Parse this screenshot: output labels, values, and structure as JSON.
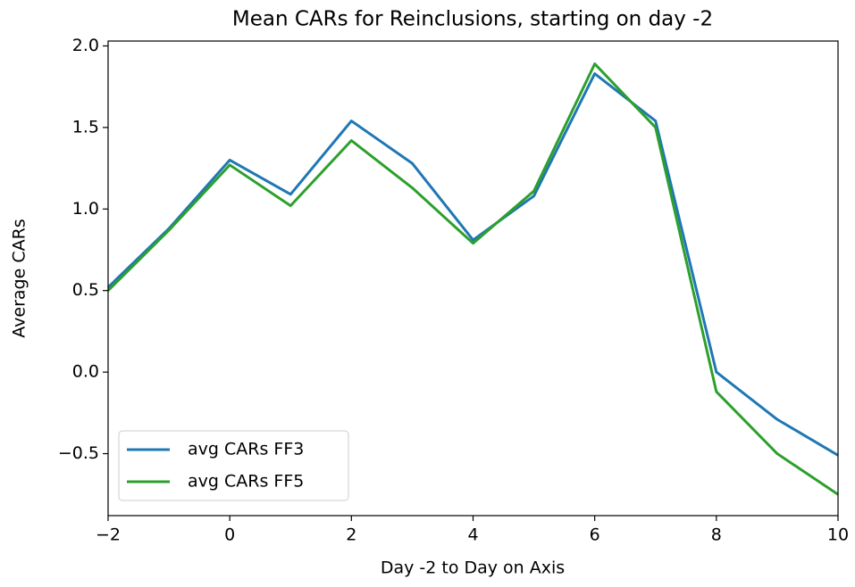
{
  "chart_data": {
    "type": "line",
    "title": "Mean CARs for  Reinclusions, starting on day -2",
    "x_label": "Day -2 to Day on Axis",
    "y_label": "Average CARs",
    "x": [
      -2,
      -1,
      0,
      1,
      2,
      3,
      4,
      5,
      6,
      7,
      8,
      9,
      10
    ],
    "series": [
      {
        "name": "avg CARs FF3",
        "color": "#1f77b4",
        "values": [
          0.52,
          0.88,
          1.3,
          1.09,
          1.54,
          1.28,
          0.81,
          1.08,
          1.83,
          1.54,
          0.0,
          -0.29,
          -0.51
        ]
      },
      {
        "name": "avg CARs FF5",
        "color": "#2ca02c",
        "values": [
          0.5,
          0.87,
          1.27,
          1.02,
          1.42,
          1.13,
          0.79,
          1.11,
          1.89,
          1.5,
          -0.12,
          -0.5,
          -0.75
        ]
      }
    ],
    "xlim": [
      -2,
      10
    ],
    "xticks": [
      {
        "value": -2,
        "label": "−2"
      },
      0,
      2,
      4,
      6,
      8,
      10
    ],
    "ylim": [
      -0.88,
      2.03
    ],
    "yticks": [
      {
        "value": -0.5,
        "label": "−0.5"
      },
      {
        "value": 0,
        "label": "0.0"
      },
      {
        "value": 0.5,
        "label": "0.5"
      },
      {
        "value": 1,
        "label": "1.0"
      },
      {
        "value": 1.5,
        "label": "1.5"
      },
      {
        "value": 2,
        "label": "2.0"
      }
    ],
    "grid": false,
    "legend": "lower left"
  }
}
